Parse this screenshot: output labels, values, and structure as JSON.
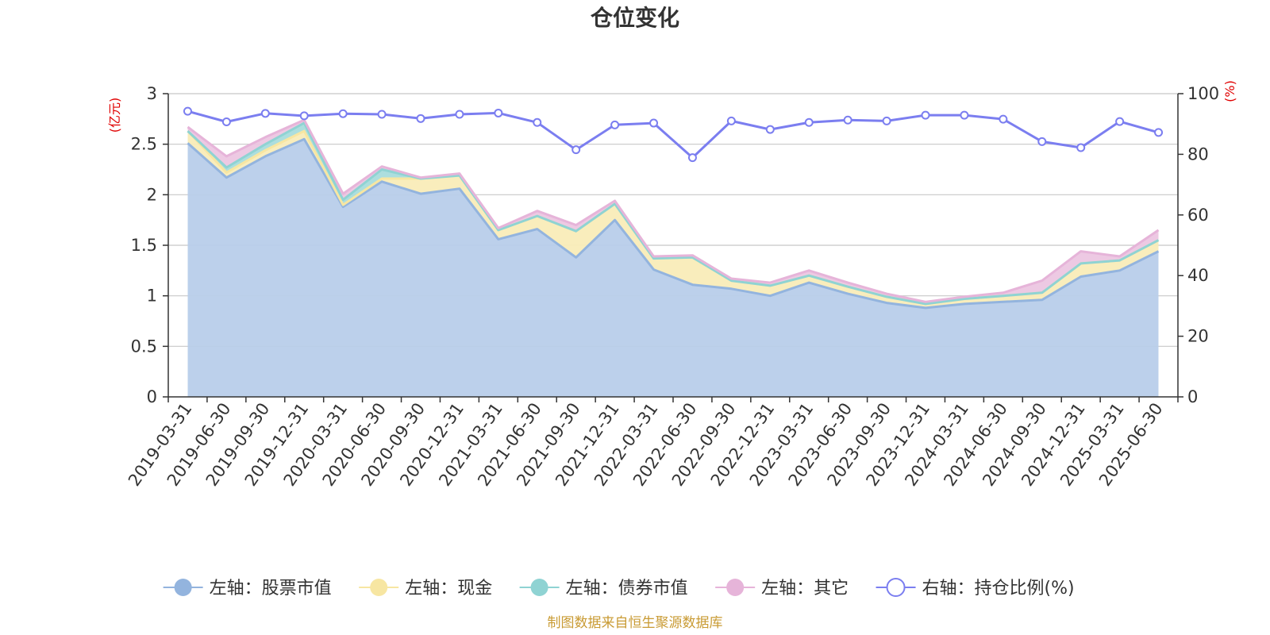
{
  "chart_data": {
    "type": "area",
    "title": "仓位变化",
    "left_axis_unit": "(亿元)",
    "right_axis_unit": "(%)",
    "left_ylim": [
      0,
      3
    ],
    "left_ticks": [
      "0",
      "0.5",
      "1",
      "1.5",
      "2",
      "2.5",
      "3"
    ],
    "right_ylim": [
      0,
      100
    ],
    "right_ticks": [
      "0",
      "20",
      "40",
      "60",
      "80",
      "100"
    ],
    "grid": true,
    "legend_position": "bottom",
    "categories": [
      "2019-03-31",
      "2019-06-30",
      "2019-09-30",
      "2019-12-31",
      "2020-03-31",
      "2020-06-30",
      "2020-09-30",
      "2020-12-31",
      "2021-03-31",
      "2021-06-30",
      "2021-09-30",
      "2021-12-31",
      "2022-03-31",
      "2022-06-30",
      "2022-09-30",
      "2022-12-31",
      "2023-03-31",
      "2023-06-30",
      "2023-09-30",
      "2023-12-31",
      "2024-03-31",
      "2024-06-30",
      "2024-09-30",
      "2024-12-31",
      "2025-03-31",
      "2025-06-30"
    ],
    "series": [
      {
        "name": "左轴：股票市值",
        "axis": "left",
        "kind": "stacked-area",
        "color": "#93b4de",
        "fill": "#b8cdea",
        "values": [
          2.51,
          2.17,
          2.38,
          2.55,
          1.88,
          2.13,
          2.01,
          2.06,
          1.56,
          1.66,
          1.38,
          1.75,
          1.26,
          1.11,
          1.07,
          1.0,
          1.13,
          1.02,
          0.93,
          0.88,
          0.92,
          0.94,
          0.96,
          1.19,
          1.25,
          1.44
        ]
      },
      {
        "name": "左轴：现金",
        "axis": "left",
        "kind": "stacked-area",
        "color": "#f7e6a2",
        "fill": "#f9ecb8",
        "values": [
          0.12,
          0.05,
          0.06,
          0.08,
          0.02,
          0.03,
          0.15,
          0.13,
          0.09,
          0.13,
          0.26,
          0.16,
          0.11,
          0.27,
          0.08,
          0.1,
          0.07,
          0.07,
          0.06,
          0.04,
          0.05,
          0.06,
          0.07,
          0.13,
          0.1,
          0.11
        ]
      },
      {
        "name": "左轴：债券市值",
        "axis": "left",
        "kind": "stacked-area",
        "color": "#8fd3d3",
        "fill": "#a8dcdc",
        "values": [
          0.0,
          0.05,
          0.06,
          0.08,
          0.05,
          0.09,
          0.0,
          0.0,
          0.0,
          0.0,
          0.0,
          0.0,
          0.0,
          0.0,
          0.0,
          0.0,
          0.0,
          0.0,
          0.0,
          0.0,
          0.0,
          0.0,
          0.0,
          0.0,
          0.0,
          0.0
        ]
      },
      {
        "name": "左轴：其它",
        "axis": "left",
        "kind": "stacked-area",
        "color": "#e6b4d9",
        "fill": "#ecc6e2",
        "values": [
          0.04,
          0.11,
          0.07,
          0.03,
          0.06,
          0.03,
          0.01,
          0.02,
          0.02,
          0.05,
          0.06,
          0.03,
          0.02,
          0.02,
          0.02,
          0.03,
          0.05,
          0.04,
          0.03,
          0.02,
          0.02,
          0.03,
          0.12,
          0.12,
          0.04,
          0.1
        ]
      },
      {
        "name": "右轴：持仓比例(%)",
        "axis": "right",
        "kind": "line",
        "color": "#7b7ef0",
        "values": [
          94.2,
          90.7,
          93.5,
          92.7,
          93.4,
          93.2,
          91.8,
          93.2,
          93.6,
          90.5,
          81.5,
          89.7,
          90.3,
          78.9,
          91.0,
          88.2,
          90.5,
          91.3,
          91.0,
          92.9,
          92.9,
          91.6,
          84.2,
          82.2,
          90.8,
          87.2
        ]
      }
    ]
  },
  "footer": {
    "text": "制图数据来自恒生聚源数据库",
    "color": "#c99b34"
  }
}
